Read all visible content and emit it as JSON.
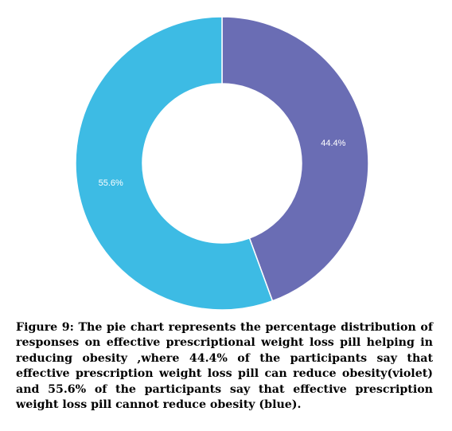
{
  "chart_data": {
    "type": "pie",
    "variant": "donut",
    "slices": [
      {
        "label": "44.4%",
        "value": 44.4,
        "color": "#6a6db4"
      },
      {
        "label": "55.6%",
        "value": 55.6,
        "color": "#3dbbe4"
      }
    ],
    "start": "top, clockwise"
  },
  "caption": {
    "text": "Figure 9: The pie chart represents the percentage distribution of responses on effective prescriptional weight loss pill helping in reducing obesity ,where 44.4% of the participants say that effective prescription weight loss pill can reduce obesity(violet) and 55.6% of the participants say that effective prescription weight loss pill cannot reduce obesity  (blue)."
  }
}
